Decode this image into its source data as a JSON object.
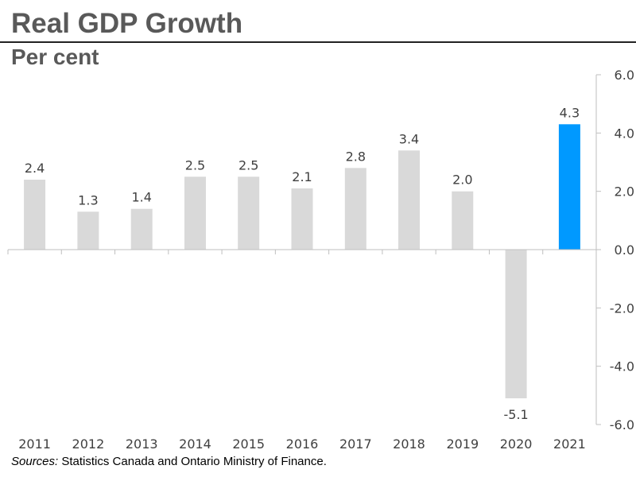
{
  "title": "Real GDP Growth",
  "subtitle": "Per cent",
  "source": {
    "label": "Sources:",
    "text": " Statistics Canada and Ontario Ministry of Finance."
  },
  "colors": {
    "bar_default": "#d9d9d9",
    "bar_highlight": "#0099ff",
    "axis": "#bfbfbf",
    "text": "#404040"
  },
  "chart_data": {
    "type": "bar",
    "title": "Real GDP Growth",
    "ylabel": "Per cent",
    "xlabel": "",
    "categories": [
      "2011",
      "2012",
      "2013",
      "2014",
      "2015",
      "2016",
      "2017",
      "2018",
      "2019",
      "2020",
      "2021"
    ],
    "values": [
      2.4,
      1.3,
      1.4,
      2.5,
      2.5,
      2.1,
      2.8,
      3.4,
      2.0,
      -5.1,
      4.3
    ],
    "value_labels": [
      "2.4",
      "1.3",
      "1.4",
      "2.5",
      "2.5",
      "2.1",
      "2.8",
      "3.4",
      "2.0",
      "-5.1",
      "4.3"
    ],
    "highlight_category": "2021",
    "ylim": [
      -6.0,
      6.0
    ],
    "yticks": [
      6.0,
      4.0,
      2.0,
      0.0,
      -2.0,
      -4.0,
      -6.0
    ],
    "ytick_labels": [
      "6.0",
      "4.0",
      "2.0",
      "0.0",
      "-2.0",
      "-4.0",
      "-6.0"
    ],
    "y_axis_position": "right",
    "grid": false,
    "legend": "none"
  }
}
